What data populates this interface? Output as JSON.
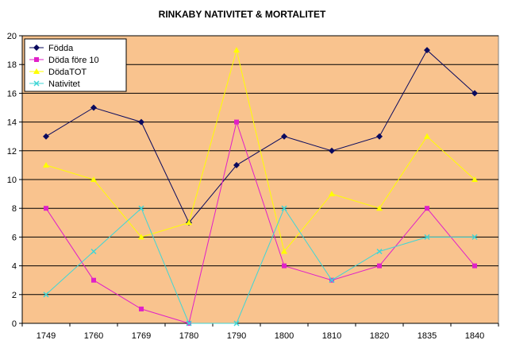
{
  "chart_data": {
    "type": "line",
    "title": "RINKABY NATIVITET & MORTALITET",
    "xlabel": "",
    "ylabel": "",
    "categories": [
      "1749",
      "1760",
      "1769",
      "1780",
      "1790",
      "1800",
      "1810",
      "1820",
      "1835",
      "1840"
    ],
    "ylim": [
      0,
      20
    ],
    "yticks": [
      0,
      2,
      4,
      6,
      8,
      10,
      12,
      14,
      16,
      18,
      20
    ],
    "grid": true,
    "legend": "top-left",
    "plot_background": "#F9C38E",
    "series": [
      {
        "name": "Födda",
        "color": "#0A0A5E",
        "marker": "diamond",
        "values": [
          13,
          15,
          14,
          7,
          11,
          13,
          12,
          13,
          19,
          16
        ]
      },
      {
        "name": "Döda före 10",
        "color": "#E020C8",
        "marker": "square",
        "values": [
          8,
          3,
          1,
          0,
          14,
          4,
          3,
          4,
          8,
          4
        ]
      },
      {
        "name": "DödaTOT",
        "color": "#FFFF00",
        "marker": "triangle",
        "values": [
          11,
          10,
          6,
          7,
          19,
          5,
          9,
          8,
          13,
          10
        ]
      },
      {
        "name": "Nativitet",
        "color": "#3FD6D6",
        "marker": "x",
        "values": [
          2,
          5,
          8,
          0,
          0,
          8,
          3,
          5,
          6,
          6
        ]
      }
    ]
  }
}
